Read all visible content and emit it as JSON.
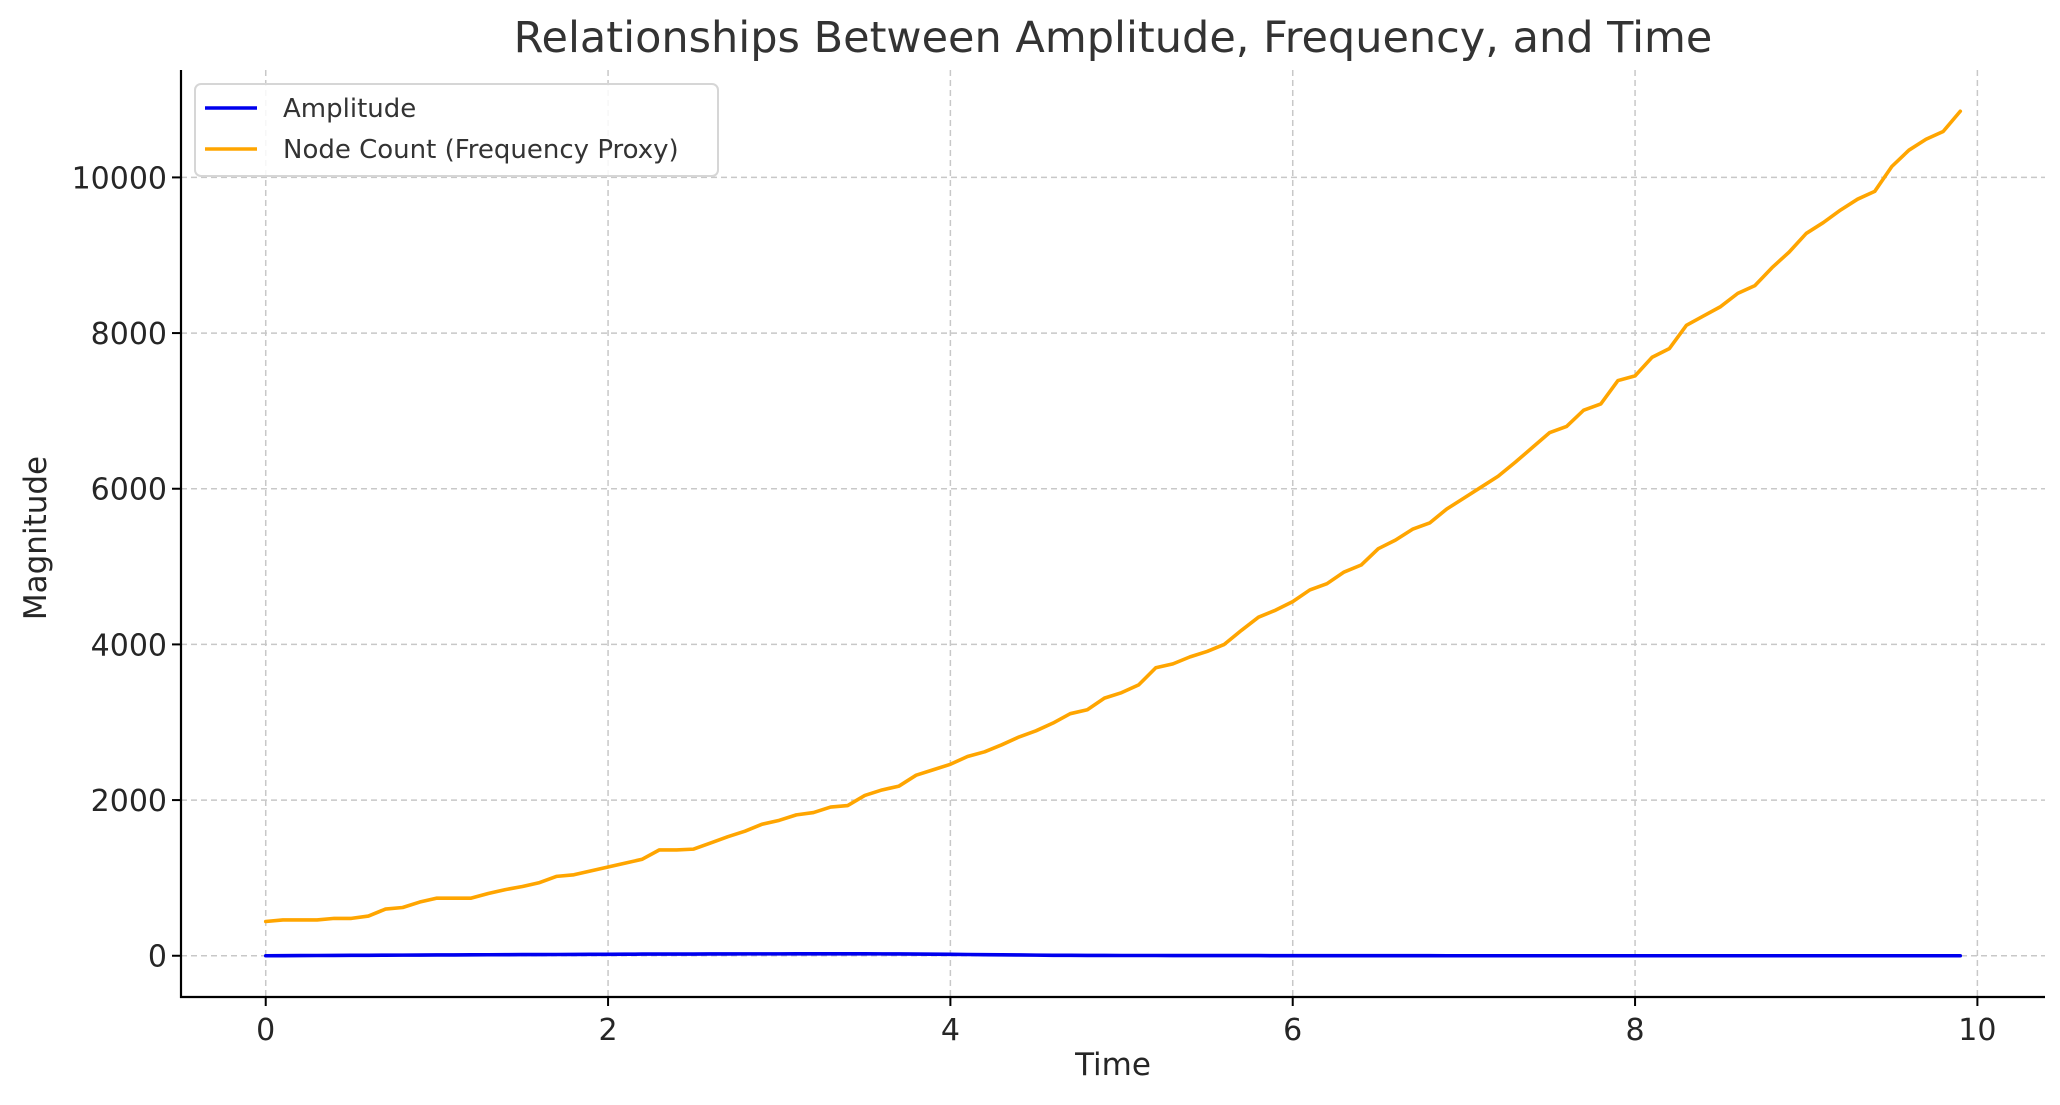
{
  "chart_data": {
    "type": "line",
    "title": "Relationships Between Amplitude, Frequency, and Time",
    "xlabel": "Time",
    "ylabel": "Magnitude",
    "xlim": [
      -0.495,
      10.395
    ],
    "ylim": [
      -530,
      11380
    ],
    "xticks": [
      0,
      2,
      4,
      6,
      8,
      10
    ],
    "yticks": [
      0,
      2000,
      4000,
      6000,
      8000,
      10000
    ],
    "grid": true,
    "legend_position": "top-left",
    "x": [
      0.0,
      0.1,
      0.2,
      0.3,
      0.4,
      0.5,
      0.6,
      0.7,
      0.8,
      0.9,
      1.0,
      1.1,
      1.2,
      1.3,
      1.4,
      1.5,
      1.6,
      1.7,
      1.8,
      1.9,
      2.0,
      2.1,
      2.2,
      2.3,
      2.4,
      2.5,
      2.6,
      2.7,
      2.8,
      2.9,
      3.0,
      3.1,
      3.2,
      3.3,
      3.4,
      3.5,
      3.6,
      3.7,
      3.8,
      3.9,
      4.0,
      4.1,
      4.2,
      4.3,
      4.4,
      4.5,
      4.6,
      4.7,
      4.8,
      4.9,
      5.0,
      5.1,
      5.2,
      5.3,
      5.4,
      5.5,
      5.6,
      5.7,
      5.8,
      5.9,
      6.0,
      6.1,
      6.2,
      6.3,
      6.4,
      6.5,
      6.6,
      6.7,
      6.8,
      6.9,
      7.0,
      7.1,
      7.2,
      7.3,
      7.4,
      7.5,
      7.6,
      7.7,
      7.8,
      7.9,
      8.0,
      8.1,
      8.2,
      8.3,
      8.4,
      8.5,
      8.6,
      8.7,
      8.8,
      8.9,
      9.0,
      9.1,
      9.2,
      9.3,
      9.4,
      9.5,
      9.6,
      9.7,
      9.8,
      9.9
    ],
    "series": [
      {
        "name": "Amplitude",
        "color": "#0000ee",
        "values": [
          0,
          1,
          2,
          3,
          4,
          5,
          6,
          7,
          8,
          9,
          10,
          11,
          12,
          13,
          14,
          15,
          15,
          16,
          17,
          18,
          19,
          20,
          21,
          21,
          22,
          22,
          23,
          23,
          24,
          24,
          24,
          25,
          25,
          25,
          25,
          25,
          24,
          23,
          22,
          20,
          18,
          16,
          14,
          12,
          10,
          8,
          6,
          5,
          4,
          4,
          3,
          3,
          3,
          2,
          2,
          2,
          2,
          2,
          2,
          1,
          1,
          1,
          1,
          1,
          1,
          1,
          1,
          1,
          1,
          0,
          0,
          0,
          0,
          0,
          0,
          0,
          0,
          0,
          0,
          0,
          0,
          0,
          0,
          0,
          0,
          0,
          0,
          0,
          0,
          0,
          0,
          0,
          0,
          0,
          0,
          0,
          0,
          0,
          0,
          0
        ]
      },
      {
        "name": "Node Count (Frequency Proxy)",
        "color": "#ffa500",
        "values": [
          440,
          460,
          460,
          460,
          480,
          480,
          510,
          600,
          620,
          690,
          740,
          740,
          740,
          800,
          850,
          890,
          940,
          1020,
          1040,
          1090,
          1140,
          1190,
          1240,
          1360,
          1360,
          1370,
          1450,
          1530,
          1600,
          1690,
          1740,
          1810,
          1840,
          1910,
          1930,
          2060,
          2130,
          2180,
          2320,
          2390,
          2460,
          2560,
          2620,
          2710,
          2810,
          2890,
          2990,
          3110,
          3160,
          3310,
          3380,
          3480,
          3700,
          3750,
          3840,
          3910,
          4000,
          4180,
          4350,
          4440,
          4550,
          4700,
          4780,
          4930,
          5020,
          5230,
          5340,
          5480,
          5560,
          5740,
          5880,
          6020,
          6160,
          6340,
          6530,
          6720,
          6800,
          7010,
          7090,
          7390,
          7450,
          7690,
          7800,
          8100,
          8220,
          8340,
          8510,
          8610,
          8840,
          9040,
          9280,
          9420,
          9580,
          9720,
          9820,
          10140,
          10350,
          10490,
          10590,
          10850
        ]
      }
    ]
  }
}
